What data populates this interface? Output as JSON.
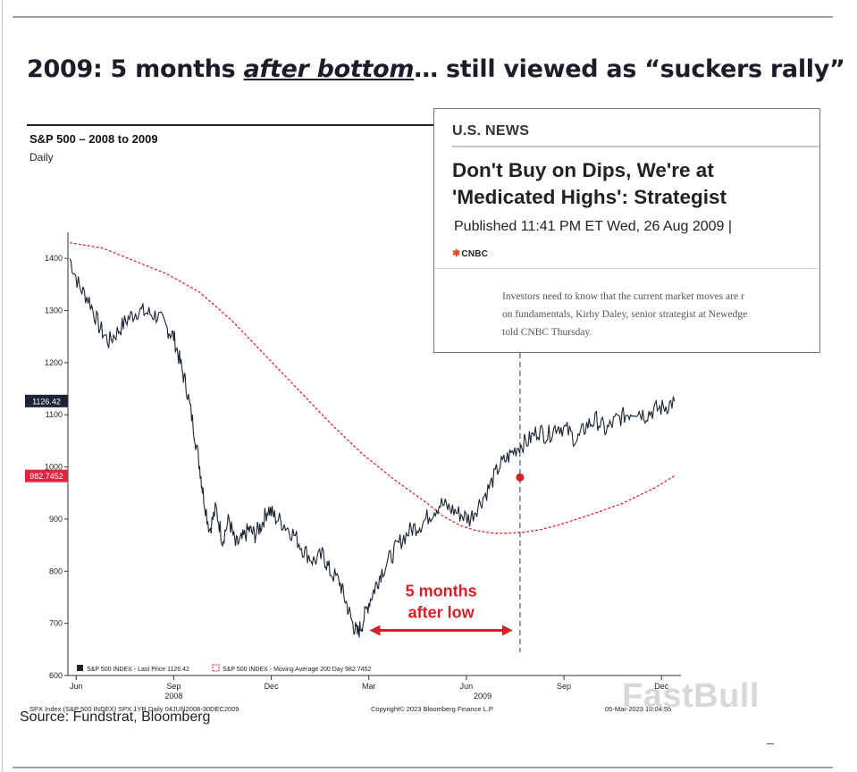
{
  "slide": {
    "title_part1": "2009: 5 months ",
    "title_emph": "after bottom",
    "title_part2": "… still viewed as “suckers rally”",
    "source": "Source: Fundstrat, Bloomberg",
    "watermark": "FastBull"
  },
  "news_card": {
    "section": "U.S. NEWS",
    "headline": "Don't Buy on Dips, We're at 'Medicated Highs': Strategist",
    "published": "Published 11:41 PM ET Wed, 26 Aug 2009 |",
    "logo": "CNBC",
    "logo_icon": "peacock-icon",
    "body_lines": [
      "Investors need to know that the current market moves are r",
      "on fundamentals, Kirby Daley, senior strategist at Newedge",
      "told CNBC Thursday."
    ]
  },
  "chart_data": {
    "type": "line",
    "title": "S&P 500 – 2008 to 2009",
    "subtitle": "Daily",
    "ylim": [
      600,
      1450
    ],
    "yticks": [
      600,
      700,
      800,
      900,
      1000,
      1100,
      1200,
      1300,
      1400
    ],
    "x_range": [
      "Jun 2008",
      "Dec 2009"
    ],
    "xlim": [
      0,
      18.8
    ],
    "xticks": [
      {
        "label": "Jun",
        "x": 0.2
      },
      {
        "label": "Sep",
        "x": 3.2
      },
      {
        "label": "Dec",
        "x": 6.2
      },
      {
        "label": "Mar",
        "x": 9.2
      },
      {
        "label": "Jun",
        "x": 12.2
      },
      {
        "label": "Sep",
        "x": 15.2
      },
      {
        "label": "Dec",
        "x": 18.2
      }
    ],
    "year_labels": [
      {
        "label": "2008",
        "x": 3.2
      },
      {
        "label": "2009",
        "x": 12.7
      }
    ],
    "series": [
      {
        "name": "S&P 500 INDEX - Last Price",
        "legend_value": "1126.42",
        "color": "#1a2433",
        "x": [
          0,
          0.3,
          0.6,
          0.9,
          1.2,
          1.5,
          1.8,
          2.1,
          2.4,
          2.7,
          3.0,
          3.2,
          3.4,
          3.6,
          3.8,
          4.0,
          4.1,
          4.3,
          4.5,
          4.7,
          4.9,
          5.1,
          5.3,
          5.5,
          5.7,
          5.9,
          6.1,
          6.3,
          6.6,
          6.9,
          7.2,
          7.5,
          7.8,
          8.0,
          8.3,
          8.5,
          8.7,
          8.85,
          9.0,
          9.2,
          9.4,
          9.6,
          9.9,
          10.2,
          10.5,
          10.8,
          11.1,
          11.4,
          11.7,
          12.0,
          12.3,
          12.6,
          12.9,
          13.2,
          13.5,
          13.8,
          14.1,
          14.4,
          14.7,
          15.0,
          15.3,
          15.6,
          15.9,
          16.2,
          16.5,
          16.8,
          17.1,
          17.4,
          17.7,
          18.0,
          18.3,
          18.6
        ],
        "y": [
          1400,
          1345,
          1320,
          1270,
          1240,
          1262,
          1285,
          1300,
          1295,
          1290,
          1265,
          1250,
          1200,
          1150,
          1080,
          1000,
          950,
          880,
          920,
          860,
          900,
          850,
          860,
          880,
          870,
          890,
          920,
          905,
          890,
          870,
          840,
          820,
          830,
          800,
          780,
          740,
          700,
          680,
          700,
          740,
          770,
          800,
          830,
          860,
          880,
          890,
          910,
          930,
          920,
          910,
          900,
          930,
          960,
          1000,
          1020,
          1040,
          1050,
          1070,
          1060,
          1080,
          1070,
          1050,
          1080,
          1090,
          1070,
          1090,
          1100,
          1110,
          1100,
          1110,
          1115,
          1126
        ]
      },
      {
        "name": "S&P 500 INDEX - Moving Average 200 Day",
        "legend_value": "982.7452",
        "color": "#e0243b",
        "dash": true,
        "x": [
          0,
          1,
          2,
          3,
          4,
          5,
          6,
          7,
          8,
          9,
          10,
          11,
          11.5,
          12,
          12.5,
          13,
          13.5,
          14,
          14.5,
          15,
          16,
          17,
          18,
          18.6
        ],
        "y": [
          1430,
          1420,
          1395,
          1370,
          1335,
          1280,
          1215,
          1150,
          1085,
          1025,
          975,
          930,
          905,
          888,
          878,
          873,
          873,
          875,
          880,
          888,
          908,
          930,
          960,
          983
        ]
      }
    ],
    "price_labels": [
      {
        "value": "1126.42",
        "y": 1126.42,
        "color": "#1a2433"
      },
      {
        "value": "982.7452",
        "y": 982.7452,
        "color": "#e0243b"
      }
    ],
    "event_marker": {
      "x": 13.85,
      "y": 980,
      "color": "#d61f26"
    },
    "vertical_line_x": 13.85,
    "annotation": {
      "lines": [
        "5 months",
        "after low"
      ],
      "color": "#d61f26",
      "from_x": 9.0,
      "to_x": 13.85,
      "arrow_y": 690
    },
    "legend": {
      "text1": "S&P 500 INDEX - Last Price",
      "value1": "1126.42",
      "text2": "S&P 500 INDEX - Moving Average 200 Day",
      "value2": "982.7452"
    },
    "footer_left": "SPX Index (S&P 500 INDEX) SPX 1YR  Daily 04JUN2008-30DEC2009",
    "footer_center": "Copyright© 2023 Bloomberg Finance L.P.",
    "footer_right": "05-Mar-2023 10:04:55"
  }
}
